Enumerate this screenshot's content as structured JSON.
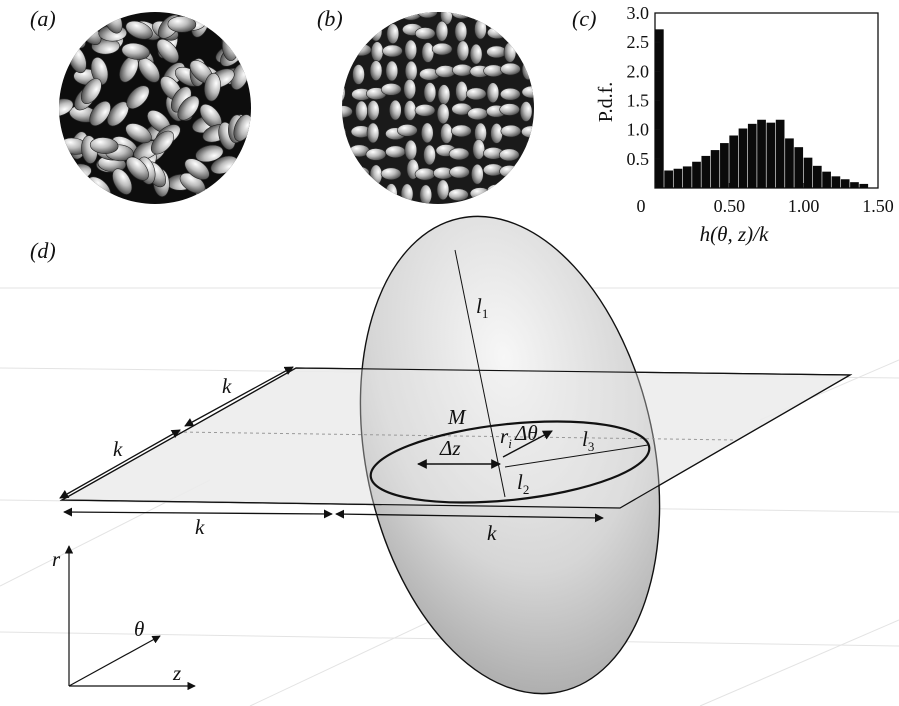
{
  "panels": {
    "a": {
      "label": "(a)"
    },
    "b": {
      "label": "(b)"
    },
    "c": {
      "label": "(c)"
    },
    "d": {
      "label": "(d)"
    }
  },
  "chart_data": {
    "type": "bar",
    "xlabel": "h(θ, z)/k",
    "ylabel": "P.d.f.",
    "xlim": [
      0,
      1.5
    ],
    "ylim": [
      0,
      3.0
    ],
    "xticks": [
      "0",
      "0.50",
      "1.00",
      "1.50"
    ],
    "yticks": [
      "0.5",
      "1.0",
      "1.5",
      "2.0",
      "2.5",
      "3.0"
    ],
    "bin_width": 0.0625,
    "x": [
      0.03125,
      0.09375,
      0.15625,
      0.21875,
      0.28125,
      0.34375,
      0.40625,
      0.46875,
      0.53125,
      0.59375,
      0.65625,
      0.71875,
      0.78125,
      0.84375,
      0.90625,
      0.96875,
      1.03125,
      1.09375,
      1.15625,
      1.21875,
      1.28125,
      1.34375,
      1.40625
    ],
    "values": [
      2.72,
      0.3,
      0.33,
      0.37,
      0.45,
      0.55,
      0.65,
      0.77,
      0.9,
      1.02,
      1.1,
      1.17,
      1.12,
      1.17,
      0.85,
      0.7,
      0.52,
      0.38,
      0.28,
      0.2,
      0.15,
      0.1,
      0.07
    ]
  },
  "diagram": {
    "labels": {
      "l1": "l",
      "l1_sub": "1",
      "l2": "l",
      "l2_sub": "2",
      "l3": "l",
      "l3_sub": "3",
      "M": "M",
      "dz": "Δz",
      "ri": "r",
      "ri_sub": "i",
      "dtheta": "Δθ",
      "k_top": "k",
      "k_left": "k",
      "k_bottom_left": "k",
      "k_bottom_right": "k",
      "axis_r": "r",
      "axis_theta": "θ",
      "axis_z": "z"
    }
  }
}
